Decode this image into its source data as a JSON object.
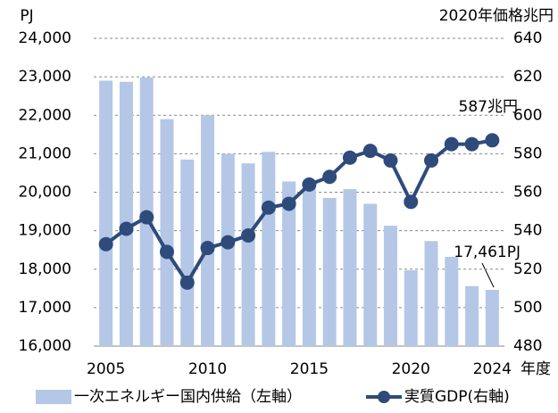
{
  "chart_data": {
    "type": "bar_line",
    "y_unit": "PJ",
    "y2_unit": "2020年価格兆円",
    "x_unit": "年度",
    "x": [
      2005,
      2006,
      2007,
      2008,
      2009,
      2010,
      2011,
      2012,
      2013,
      2014,
      2015,
      2016,
      2017,
      2018,
      2019,
      2020,
      2021,
      2022,
      2023,
      2024
    ],
    "xlim": [
      2004.4,
      2024.6
    ],
    "xticks": [
      2005,
      2010,
      2015,
      2020,
      2024
    ],
    "ylim": [
      16000,
      24000
    ],
    "yticks": [
      {
        "value": 16000,
        "label": "16,000"
      },
      {
        "value": 17000,
        "label": "17,000"
      },
      {
        "value": 18000,
        "label": "18,000"
      },
      {
        "value": 19000,
        "label": "19,000"
      },
      {
        "value": 20000,
        "label": "20,000"
      },
      {
        "value": 21000,
        "label": "21,000"
      },
      {
        "value": 22000,
        "label": "22,000"
      },
      {
        "value": 23000,
        "label": "23,000"
      },
      {
        "value": 24000,
        "label": "24,000"
      }
    ],
    "y2lim": [
      480,
      640
    ],
    "y2ticks": [
      480,
      500,
      520,
      540,
      560,
      580,
      600,
      620,
      640
    ],
    "grid": true,
    "series": [
      {
        "name": "一次エネルギー国内供給（左軸）",
        "type": "bar",
        "color": "#b4c7e7",
        "values": [
          22900,
          22870,
          22980,
          21900,
          20850,
          22000,
          21000,
          20750,
          21050,
          20280,
          20100,
          19850,
          20080,
          19700,
          19130,
          17970,
          18730,
          18320,
          17560,
          17461
        ]
      },
      {
        "name": "実質GDP(右軸)",
        "type": "line",
        "axis": "y2",
        "color": "#2e4b7c",
        "values": [
          533,
          541,
          547,
          529,
          513,
          531,
          534,
          537.5,
          552,
          554,
          564,
          568,
          578,
          581.5,
          576.5,
          555,
          576.5,
          585,
          585,
          587
        ]
      }
    ],
    "annotations": [
      "587兆円",
      "17,461PJ"
    ],
    "legend": "bottom"
  }
}
